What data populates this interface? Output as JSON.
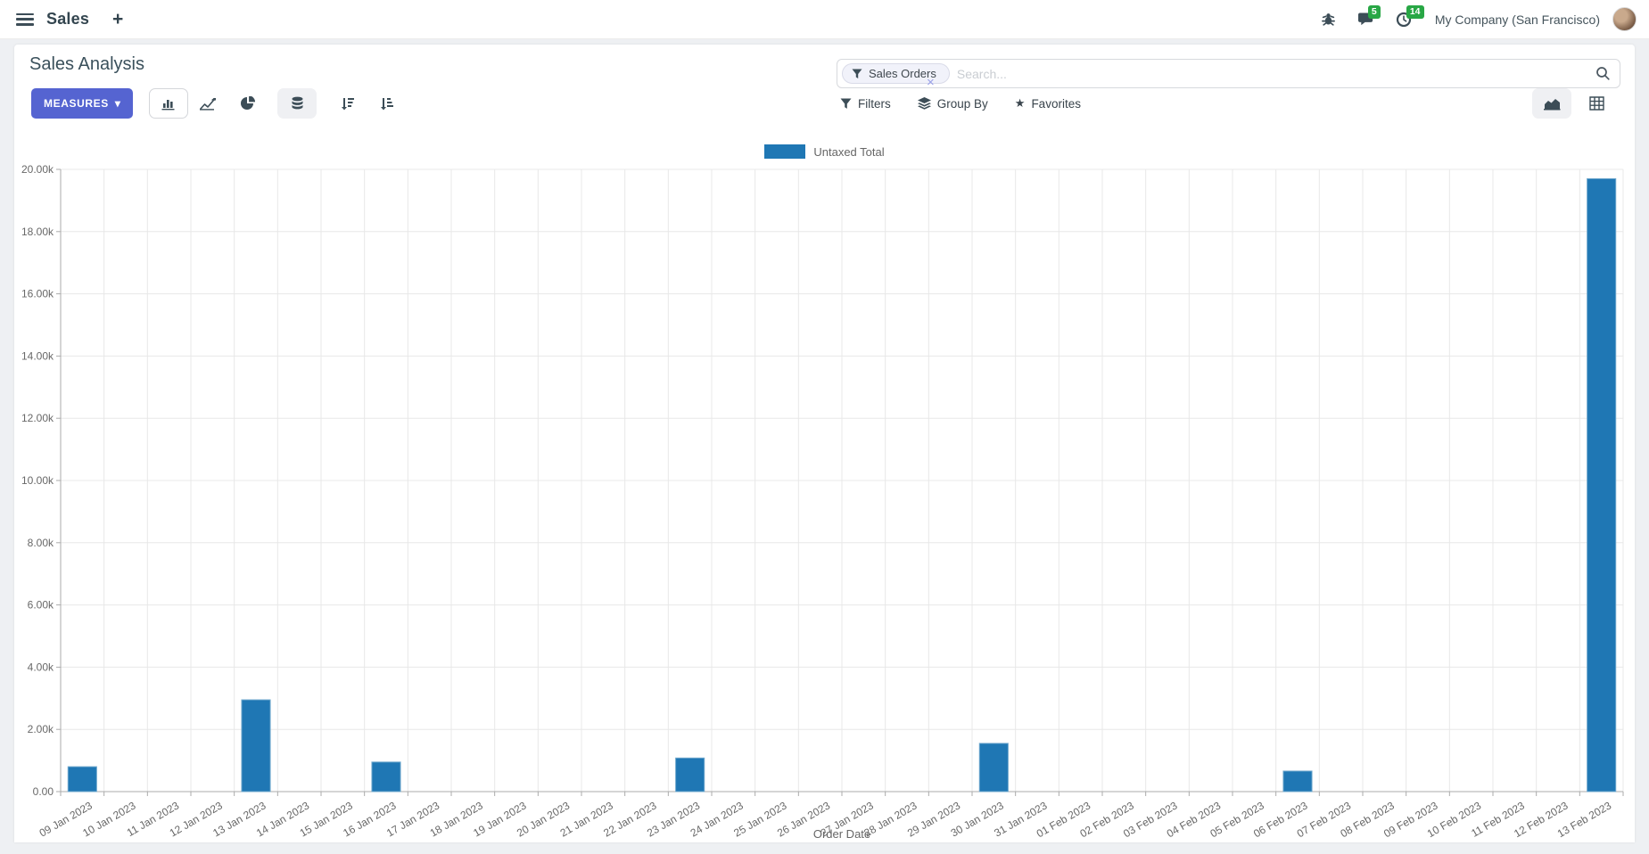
{
  "navbar": {
    "app_name": "Sales",
    "plus": "+",
    "messages_badge": "5",
    "activities_badge": "14",
    "company": "My Company (San Francisco)"
  },
  "control_panel": {
    "title": "Sales Analysis",
    "measures_label": "MEASURES",
    "search": {
      "facet": "Sales Orders",
      "placeholder": "Search...",
      "remove": "×"
    },
    "filters_label": "Filters",
    "group_by_label": "Group By",
    "favorites_label": "Favorites"
  },
  "icons": {
    "caret_down": "▾",
    "star": "★",
    "close": "×"
  },
  "colors": {
    "accent": "#5564d1",
    "bar": "#1f77b4",
    "bar_border": "#6fa8cd",
    "badge": "#28a745"
  },
  "chart_data": {
    "type": "bar",
    "title": "",
    "legend_label": "Untaxed Total",
    "xlabel": "Order Date",
    "ylabel": "",
    "ylim": [
      0,
      20000
    ],
    "ytick_step": 2000,
    "ytick_labels": [
      "0.00",
      "2.00k",
      "4.00k",
      "6.00k",
      "8.00k",
      "10.00k",
      "12.00k",
      "14.00k",
      "16.00k",
      "18.00k",
      "20.00k"
    ],
    "grid": true,
    "legend_position": "top",
    "categories": [
      "09 Jan 2023",
      "10 Jan 2023",
      "11 Jan 2023",
      "12 Jan 2023",
      "13 Jan 2023",
      "14 Jan 2023",
      "15 Jan 2023",
      "16 Jan 2023",
      "17 Jan 2023",
      "18 Jan 2023",
      "19 Jan 2023",
      "20 Jan 2023",
      "21 Jan 2023",
      "22 Jan 2023",
      "23 Jan 2023",
      "24 Jan 2023",
      "25 Jan 2023",
      "26 Jan 2023",
      "27 Jan 2023",
      "28 Jan 2023",
      "29 Jan 2023",
      "30 Jan 2023",
      "31 Jan 2023",
      "01 Feb 2023",
      "02 Feb 2023",
      "03 Feb 2023",
      "04 Feb 2023",
      "05 Feb 2023",
      "06 Feb 2023",
      "07 Feb 2023",
      "08 Feb 2023",
      "09 Feb 2023",
      "10 Feb 2023",
      "11 Feb 2023",
      "12 Feb 2023",
      "13 Feb 2023"
    ],
    "series": [
      {
        "name": "Untaxed Total",
        "values": [
          800,
          0,
          0,
          0,
          2950,
          0,
          0,
          950,
          0,
          0,
          0,
          0,
          0,
          0,
          1080,
          0,
          0,
          0,
          0,
          0,
          0,
          1550,
          0,
          0,
          0,
          0,
          0,
          0,
          660,
          0,
          0,
          0,
          0,
          0,
          0,
          19700
        ]
      }
    ]
  }
}
